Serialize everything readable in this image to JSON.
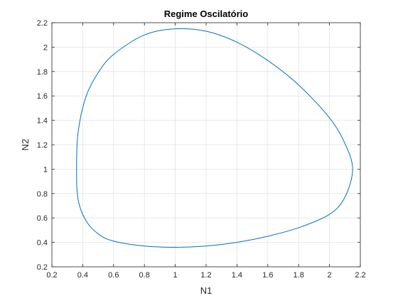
{
  "chart_data": {
    "type": "line",
    "title": "Regime Oscilatório",
    "xlabel": "N1",
    "ylabel": "N2",
    "xlim": [
      0.2,
      2.2
    ],
    "ylim": [
      0.2,
      2.2
    ],
    "grid": true,
    "box": true,
    "xticks": [
      0.2,
      0.4,
      0.6,
      0.8,
      1,
      1.2,
      1.4,
      1.6,
      1.8,
      2,
      2.2
    ],
    "yticks": [
      0.2,
      0.4,
      0.6,
      0.8,
      1,
      1.2,
      1.4,
      1.6,
      1.8,
      2,
      2.2
    ],
    "xtick_labels": [
      "0.2",
      "0.4",
      "0.6",
      "0.8",
      "1",
      "1.2",
      "1.4",
      "1.6",
      "1.8",
      "2",
      "2.2"
    ],
    "ytick_labels": [
      "0.2",
      "0.4",
      "0.6",
      "0.8",
      "1",
      "1.2",
      "1.4",
      "1.6",
      "1.8",
      "2",
      "2.2"
    ],
    "series": [
      {
        "color": "#0072BD",
        "x": [
          1.0,
          1.2,
          1.4,
          1.6,
          1.8,
          2.0,
          2.1,
          2.15,
          2.1,
          2.0,
          1.8,
          1.6,
          1.4,
          1.2,
          1.0,
          0.8,
          0.6,
          0.5,
          0.42,
          0.37,
          0.36,
          0.37,
          0.42,
          0.5,
          0.6,
          0.8,
          1.0
        ],
        "y": [
          2.15,
          2.13,
          2.04,
          1.89,
          1.69,
          1.42,
          1.21,
          1.0,
          0.77,
          0.63,
          0.52,
          0.45,
          0.4,
          0.37,
          0.36,
          0.37,
          0.41,
          0.47,
          0.58,
          0.75,
          1.0,
          1.3,
          1.59,
          1.79,
          1.94,
          2.1,
          2.15
        ]
      }
    ]
  }
}
